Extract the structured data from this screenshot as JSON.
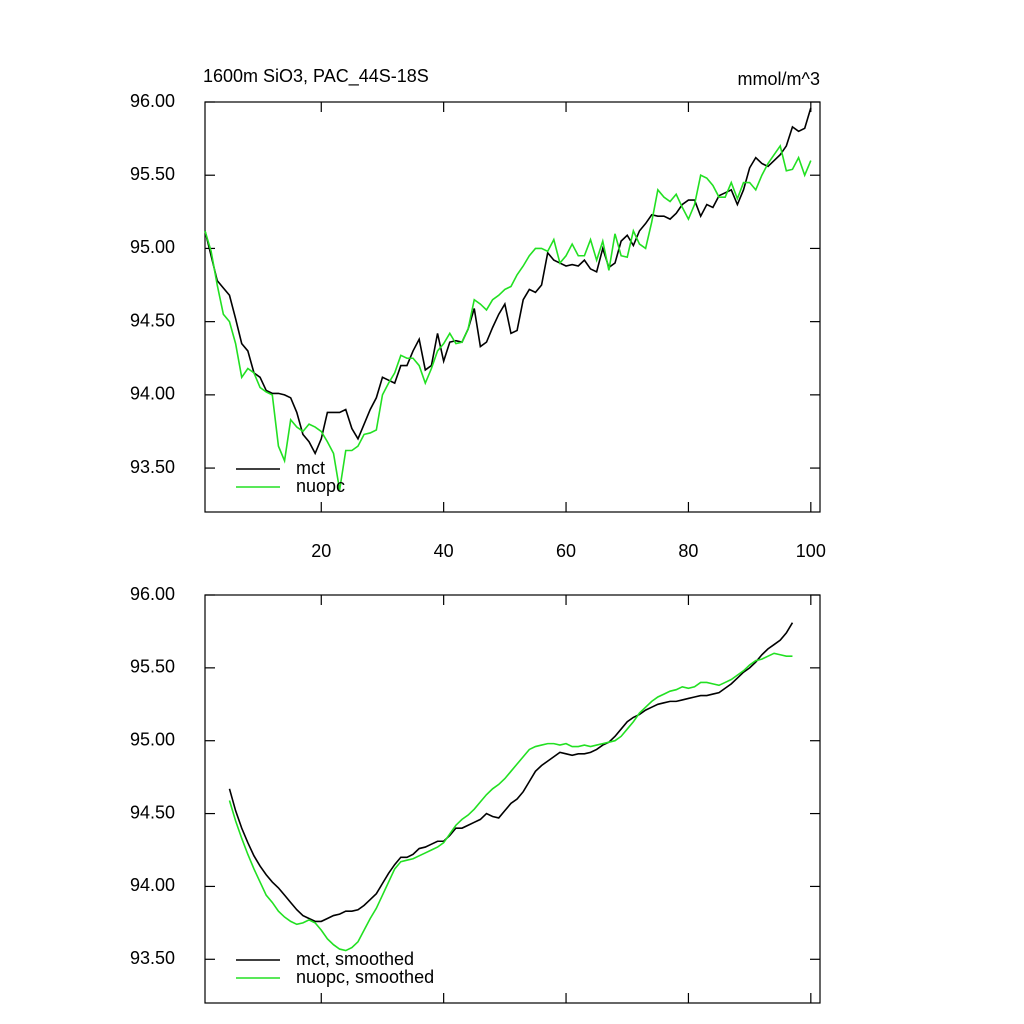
{
  "chart_data": [
    {
      "type": "line",
      "title": "1600m SiO3, PAC_44S-18S",
      "units": "mmol/m^3",
      "x": [
        1,
        2,
        3,
        4,
        5,
        6,
        7,
        8,
        9,
        10,
        11,
        12,
        13,
        14,
        15,
        16,
        17,
        18,
        19,
        20,
        21,
        22,
        23,
        24,
        25,
        26,
        27,
        28,
        29,
        30,
        31,
        32,
        33,
        34,
        35,
        36,
        37,
        38,
        39,
        40,
        41,
        42,
        43,
        44,
        45,
        46,
        47,
        48,
        49,
        50,
        51,
        52,
        53,
        54,
        55,
        56,
        57,
        58,
        59,
        60,
        61,
        62,
        63,
        64,
        65,
        66,
        67,
        68,
        69,
        70,
        71,
        72,
        73,
        74,
        75,
        76,
        77,
        78,
        79,
        80,
        81,
        82,
        83,
        84,
        85,
        86,
        87,
        88,
        89,
        90,
        91,
        92,
        93,
        94,
        95,
        96,
        97,
        98,
        99,
        100
      ],
      "series": [
        {
          "name": "mct",
          "color": "#000000",
          "values": [
            95.12,
            94.95,
            94.78,
            94.73,
            94.68,
            94.52,
            94.35,
            94.3,
            94.15,
            94.12,
            94.03,
            94.01,
            94.01,
            94.0,
            93.98,
            93.88,
            93.73,
            93.68,
            93.6,
            93.7,
            93.88,
            93.88,
            93.88,
            93.9,
            93.77,
            93.7,
            93.8,
            93.9,
            93.98,
            94.12,
            94.1,
            94.08,
            94.2,
            94.2,
            94.3,
            94.38,
            94.17,
            94.2,
            94.42,
            94.23,
            94.36,
            94.37,
            94.36,
            94.45,
            94.59,
            94.33,
            94.36,
            94.46,
            94.55,
            94.62,
            94.42,
            94.44,
            94.65,
            94.72,
            94.7,
            94.75,
            94.97,
            94.92,
            94.9,
            94.88,
            94.89,
            94.88,
            94.92,
            94.86,
            94.84,
            95.0,
            94.87,
            94.9,
            95.05,
            95.09,
            95.02,
            95.12,
            95.17,
            95.23,
            95.22,
            95.22,
            95.2,
            95.24,
            95.3,
            95.33,
            95.33,
            95.22,
            95.3,
            95.28,
            95.36,
            95.38,
            95.4,
            95.3,
            95.4,
            95.55,
            95.62,
            95.58,
            95.56,
            95.6,
            95.64,
            95.7,
            95.83,
            95.8,
            95.82,
            95.96
          ]
        },
        {
          "name": "nuopc",
          "color": "#22e022",
          "values": [
            95.12,
            94.98,
            94.75,
            94.55,
            94.5,
            94.35,
            94.12,
            94.18,
            94.15,
            94.05,
            94.02,
            94.0,
            93.65,
            93.55,
            93.83,
            93.78,
            93.75,
            93.8,
            93.78,
            93.75,
            93.68,
            93.6,
            93.35,
            93.62,
            93.62,
            93.65,
            93.73,
            93.74,
            93.76,
            94.0,
            94.08,
            94.15,
            94.27,
            94.25,
            94.25,
            94.2,
            94.08,
            94.18,
            94.3,
            94.35,
            94.42,
            94.35,
            94.36,
            94.45,
            94.65,
            94.62,
            94.58,
            94.65,
            94.68,
            94.72,
            94.74,
            94.82,
            94.88,
            94.95,
            95.0,
            95.0,
            94.98,
            95.06,
            94.9,
            94.95,
            95.03,
            94.95,
            94.95,
            95.06,
            94.92,
            95.05,
            94.85,
            95.1,
            94.95,
            94.94,
            95.12,
            95.03,
            95.0,
            95.18,
            95.4,
            95.35,
            95.32,
            95.37,
            95.28,
            95.2,
            95.3,
            95.5,
            95.48,
            95.43,
            95.35,
            95.35,
            95.45,
            95.34,
            95.45,
            95.45,
            95.4,
            95.5,
            95.58,
            95.64,
            95.7,
            95.53,
            95.54,
            95.62,
            95.5,
            95.6
          ]
        }
      ],
      "xlim": [
        1,
        101.5
      ],
      "xticks": [
        20,
        40,
        60,
        80,
        100
      ],
      "xtick_labels": true,
      "ylim": [
        93.2,
        96.0
      ],
      "yticks": [
        {
          "value": 93.5,
          "label": "93.50"
        },
        {
          "value": 94,
          "label": "94.00"
        },
        {
          "value": 94.5,
          "label": "94.50"
        },
        {
          "value": 95,
          "label": "95.00"
        },
        {
          "value": 95.5,
          "label": "95.50"
        },
        {
          "value": 96,
          "label": "96.00"
        }
      ],
      "legend": "lower left"
    },
    {
      "type": "line",
      "x": [
        5,
        6,
        7,
        8,
        9,
        10,
        11,
        12,
        13,
        14,
        15,
        16,
        17,
        18,
        19,
        20,
        21,
        22,
        23,
        24,
        25,
        26,
        27,
        28,
        29,
        30,
        31,
        32,
        33,
        34,
        35,
        36,
        37,
        38,
        39,
        40,
        41,
        42,
        43,
        44,
        45,
        46,
        47,
        48,
        49,
        50,
        51,
        52,
        53,
        54,
        55,
        56,
        57,
        58,
        59,
        60,
        61,
        62,
        63,
        64,
        65,
        66,
        67,
        68,
        69,
        70,
        71,
        72,
        73,
        74,
        75,
        76,
        77,
        78,
        79,
        80,
        81,
        82,
        83,
        84,
        85,
        86,
        87,
        88,
        89,
        90,
        91,
        92,
        93,
        94,
        95,
        96,
        97
      ],
      "series": [
        {
          "name": "mct, smoothed",
          "color": "#000000",
          "values": [
            94.67,
            94.52,
            94.4,
            94.3,
            94.21,
            94.14,
            94.08,
            94.03,
            93.99,
            93.94,
            93.89,
            93.84,
            93.8,
            93.78,
            93.76,
            93.76,
            93.78,
            93.8,
            93.81,
            93.83,
            93.83,
            93.84,
            93.87,
            93.91,
            93.95,
            94.02,
            94.09,
            94.15,
            94.2,
            94.2,
            94.22,
            94.26,
            94.27,
            94.29,
            94.31,
            94.31,
            94.35,
            94.4,
            94.4,
            94.42,
            94.44,
            94.46,
            94.5,
            94.48,
            94.47,
            94.52,
            94.57,
            94.6,
            94.65,
            94.72,
            94.79,
            94.83,
            94.86,
            94.89,
            94.92,
            94.91,
            94.9,
            94.91,
            94.91,
            94.92,
            94.94,
            94.97,
            94.99,
            95.03,
            95.08,
            95.13,
            95.16,
            95.18,
            95.21,
            95.23,
            95.25,
            95.26,
            95.27,
            95.27,
            95.28,
            95.29,
            95.3,
            95.31,
            95.31,
            95.32,
            95.33,
            95.36,
            95.39,
            95.43,
            95.47,
            95.5,
            95.54,
            95.59,
            95.63,
            95.66,
            95.69,
            95.74,
            95.81
          ]
        },
        {
          "name": "nuopc, smoothed",
          "color": "#22e022",
          "values": [
            94.59,
            94.45,
            94.33,
            94.22,
            94.12,
            94.03,
            93.94,
            93.89,
            93.83,
            93.79,
            93.76,
            93.74,
            93.75,
            93.77,
            93.75,
            93.7,
            93.64,
            93.6,
            93.57,
            93.56,
            93.58,
            93.62,
            93.7,
            93.78,
            93.85,
            93.94,
            94.03,
            94.12,
            94.17,
            94.18,
            94.19,
            94.21,
            94.23,
            94.25,
            94.27,
            94.3,
            94.36,
            94.42,
            94.46,
            94.49,
            94.53,
            94.58,
            94.63,
            94.67,
            94.7,
            94.74,
            94.79,
            94.84,
            94.89,
            94.94,
            94.96,
            94.97,
            94.98,
            94.98,
            94.97,
            94.98,
            94.96,
            94.96,
            94.97,
            94.96,
            94.97,
            94.98,
            94.99,
            95.0,
            95.03,
            95.08,
            95.13,
            95.19,
            95.23,
            95.27,
            95.3,
            95.32,
            95.34,
            95.35,
            95.37,
            95.36,
            95.37,
            95.4,
            95.4,
            95.39,
            95.38,
            95.4,
            95.42,
            95.45,
            95.48,
            95.52,
            95.55,
            95.56,
            95.58,
            95.6,
            95.59,
            95.58,
            95.58
          ]
        }
      ],
      "xlim": [
        1,
        101.5
      ],
      "xticks": [
        20,
        40,
        60,
        80,
        100
      ],
      "xtick_labels": false,
      "ylim": [
        93.2,
        96.0
      ],
      "yticks": [
        {
          "value": 93.5,
          "label": "93.50"
        },
        {
          "value": 94,
          "label": "94.00"
        },
        {
          "value": 94.5,
          "label": "94.50"
        },
        {
          "value": 95,
          "label": "95.00"
        },
        {
          "value": 95.5,
          "label": "95.50"
        },
        {
          "value": 96,
          "label": "96.00"
        }
      ],
      "legend": "lower left"
    }
  ]
}
